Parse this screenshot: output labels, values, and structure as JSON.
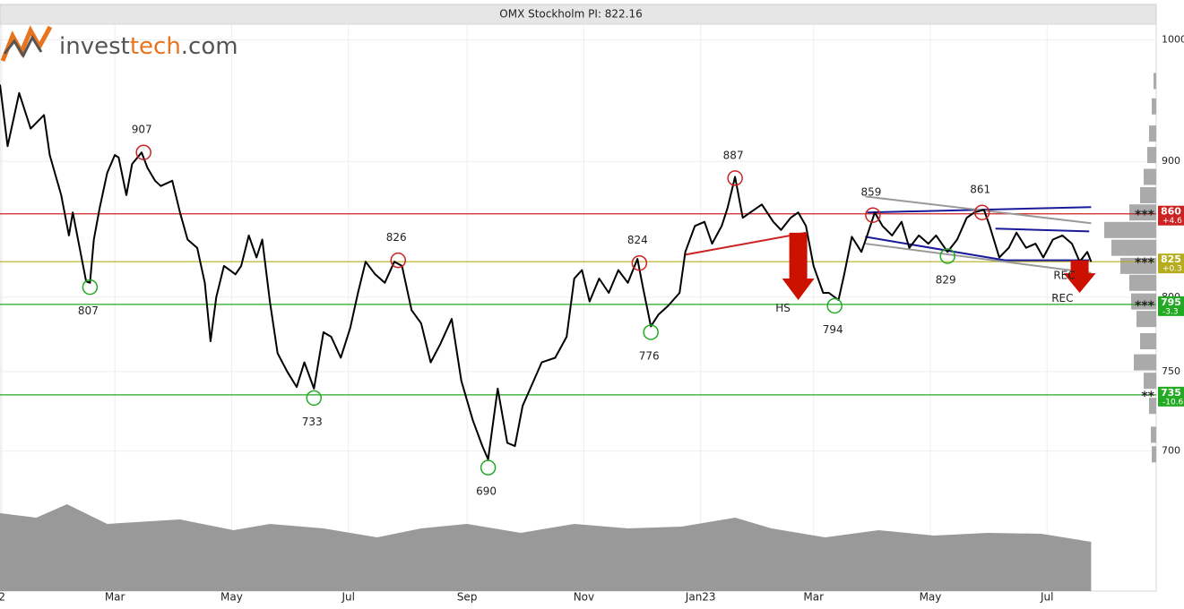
{
  "chart_data": {
    "type": "line",
    "title": "OMX Stockholm PI: 822.16",
    "logo": [
      "invest",
      "tech",
      ".com"
    ],
    "xlim": [
      -1,
      603
    ],
    "xticks": [
      {
        "value": 0,
        "label": "2"
      },
      {
        "value": 59,
        "label": "Mar"
      },
      {
        "value": 120,
        "label": "May"
      },
      {
        "value": 181,
        "label": "Jul"
      },
      {
        "value": 243,
        "label": "Sep"
      },
      {
        "value": 304,
        "label": "Nov"
      },
      {
        "value": 365,
        "label": "Jan23"
      },
      {
        "value": 424,
        "label": "Mar"
      },
      {
        "value": 485,
        "label": "May"
      },
      {
        "value": 546,
        "label": "Jul"
      }
    ],
    "ylim": [
      670,
      1013
    ],
    "yticks": [
      700,
      750,
      800,
      900,
      1000
    ],
    "log_scale": true,
    "grid": true,
    "series": [
      {
        "color": "#000000",
        "x": [
          -1,
          3,
          9,
          15,
          22,
          25,
          31,
          35,
          37,
          44,
          46,
          48,
          51,
          55,
          59,
          61,
          65,
          68,
          73,
          76,
          80,
          83,
          89,
          93,
          97,
          102,
          106,
          109,
          112,
          116,
          122,
          125,
          129,
          133,
          136,
          140,
          144,
          149,
          154,
          158,
          163,
          168,
          172,
          177,
          182,
          186,
          190,
          195,
          200,
          205,
          209,
          214,
          219,
          224,
          229,
          235,
          240,
          246,
          251,
          254,
          259,
          264,
          268,
          272,
          276,
          282,
          289,
          295,
          299,
          303,
          307,
          312,
          317,
          322,
          327,
          332,
          335,
          339,
          343,
          348,
          354,
          357,
          362,
          367,
          371,
          376,
          379,
          383,
          387,
          391,
          397,
          403,
          407,
          412,
          416,
          420,
          424,
          429,
          432,
          437,
          440,
          444,
          449,
          452,
          456,
          460,
          465,
          470,
          474,
          479,
          484,
          488,
          494,
          499,
          504,
          508,
          513,
          516,
          521,
          526,
          530,
          535,
          540,
          544,
          549,
          554,
          559,
          563,
          567,
          569
        ],
        "values": [
          962,
          912,
          955,
          926,
          937,
          905,
          874,
          844,
          861,
          811,
          810,
          841,
          864,
          891,
          905,
          903,
          874,
          898,
          907,
          895,
          885,
          881,
          885,
          861,
          841,
          835,
          810,
          770,
          800,
          822,
          816,
          822,
          844,
          828,
          841,
          797,
          762,
          750,
          740,
          756,
          739,
          776,
          773,
          759,
          779,
          803,
          825,
          816,
          810,
          825,
          822,
          791,
          782,
          756,
          768,
          785,
          744,
          719,
          703,
          695,
          739,
          705,
          703,
          728,
          739,
          756,
          759,
          773,
          813,
          819,
          797,
          813,
          803,
          819,
          810,
          827,
          806,
          780,
          788,
          794,
          803,
          832,
          851,
          854,
          838,
          851,
          864,
          888,
          857,
          861,
          867,
          854,
          848,
          857,
          861,
          851,
          822,
          803,
          803,
          798,
          816,
          843,
          832,
          844,
          861,
          851,
          844,
          854,
          835,
          844,
          838,
          844,
          832,
          841,
          857,
          861,
          863,
          851,
          828,
          835,
          846,
          835,
          838,
          828,
          841,
          844,
          838,
          825,
          832,
          825
        ]
      }
    ],
    "pivots": [
      {
        "x": 74,
        "value": 907,
        "color": "#cc2222"
      },
      {
        "x": 46,
        "value": 807,
        "color": "#22aa22"
      },
      {
        "x": 207,
        "value": 826,
        "color": "#cc2222"
      },
      {
        "x": 163,
        "value": 733,
        "color": "#22aa22"
      },
      {
        "x": 254,
        "value": 690,
        "color": "#22aa22"
      },
      {
        "x": 333,
        "value": 824,
        "color": "#cc2222"
      },
      {
        "x": 339,
        "value": 776,
        "color": "#22aa22"
      },
      {
        "x": 383,
        "value": 887,
        "color": "#cc2222"
      },
      {
        "x": 435,
        "value": 794,
        "color": "#22aa22"
      },
      {
        "x": 455,
        "value": 859,
        "color": "#cc2222"
      },
      {
        "x": 494,
        "value": 829,
        "color": "#22aa22"
      },
      {
        "x": 512,
        "value": 861,
        "color": "#cc2222"
      }
    ],
    "levels": [
      {
        "value": 860,
        "change": "+4.6",
        "marker": "***",
        "color": "#cc2222"
      },
      {
        "value": 825,
        "change": "+0.3",
        "marker": "***",
        "color": "#b5ad1e"
      },
      {
        "value": 795,
        "change": "-3.3",
        "marker": "***",
        "color": "#22aa22"
      },
      {
        "value": 735,
        "change": "-10.6",
        "marker": "**",
        "color": "#22aa22"
      }
    ],
    "trendlines": [
      {
        "x": [
          357,
          420
        ],
        "y": [
          830,
          846
        ],
        "color": "#cc2222"
      },
      {
        "x": [
          452,
          569
        ],
        "y": [
          861,
          865
        ],
        "color": "#1a1a99"
      },
      {
        "x": [
          519,
          568
        ],
        "y": [
          849,
          847
        ],
        "color": "#1a1a99"
      },
      {
        "x": [
          451,
          524
        ],
        "y": [
          843,
          826
        ],
        "color": "#1a1a99"
      },
      {
        "x": [
          519,
          568
        ],
        "y": [
          826,
          826
        ],
        "color": "#1a1a99"
      },
      {
        "x": [
          451,
          569
        ],
        "y": [
          873,
          853
        ],
        "color": "#999999"
      },
      {
        "x": [
          451,
          569
        ],
        "y": [
          838,
          817
        ],
        "color": "#999999"
      }
    ],
    "arrows": [
      {
        "x": 416,
        "from": 846,
        "to": 798,
        "label": "HS",
        "label_x": 408,
        "label_y": 792,
        "color": "#cc1100"
      },
      {
        "x": 563,
        "from": 826,
        "to": 803,
        "label": "REC",
        "label_x": 554,
        "label_y": 799,
        "color": "#cc1100"
      }
    ],
    "texts": [
      {
        "text": "REC",
        "x": 555,
        "y": 815
      }
    ],
    "volume": {
      "color": "#999999",
      "vlim": [
        0,
        130
      ],
      "x": [
        -1,
        18,
        34,
        55,
        93,
        121,
        140,
        168,
        196,
        219,
        243,
        271,
        299,
        327,
        355,
        383,
        402,
        430,
        458,
        487,
        515,
        543,
        569
      ],
      "values": [
        87,
        82,
        97,
        75,
        80,
        68,
        75,
        70,
        60,
        70,
        75,
        65,
        75,
        70,
        72,
        82,
        70,
        60,
        68,
        62,
        65,
        64,
        55
      ]
    },
    "profile": {
      "color": "#aaaaaa",
      "xlim": [
        0,
        60
      ],
      "levels": [
        965,
        944,
        922,
        905,
        888,
        874,
        861,
        848,
        835,
        822,
        810,
        797,
        785,
        770,
        756,
        744,
        728,
        710,
        698
      ],
      "values": [
        3,
        5,
        8,
        10,
        14,
        18,
        30,
        58,
        50,
        40,
        30,
        28,
        22,
        18,
        25,
        14,
        8,
        6,
        5
      ]
    }
  }
}
